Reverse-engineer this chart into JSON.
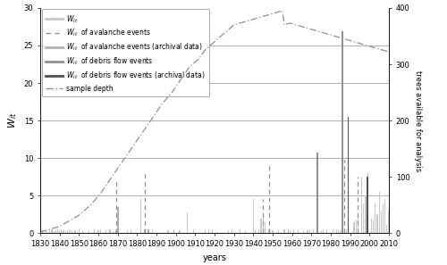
{
  "xlabel": "years",
  "ylabel_left": "$W_{it}$",
  "ylabel_right": "trees available for analysis",
  "xlim": [
    1830,
    2010
  ],
  "ylim_left": [
    0,
    30
  ],
  "ylim_right": [
    0,
    400
  ],
  "yticks_left": [
    0,
    5,
    10,
    15,
    20,
    25,
    30
  ],
  "yticks_right": [
    0,
    100,
    200,
    300,
    400
  ],
  "xticks": [
    1830,
    1840,
    1850,
    1860,
    1870,
    1880,
    1890,
    1900,
    1910,
    1920,
    1930,
    1940,
    1950,
    1960,
    1970,
    1980,
    1990,
    2000,
    2010
  ],
  "sample_depth_years": [
    1830,
    1831,
    1832,
    1833,
    1834,
    1835,
    1836,
    1837,
    1838,
    1839,
    1840,
    1841,
    1842,
    1843,
    1844,
    1845,
    1846,
    1847,
    1848,
    1849,
    1850,
    1851,
    1852,
    1853,
    1854,
    1855,
    1856,
    1857,
    1858,
    1859,
    1860,
    1861,
    1862,
    1863,
    1864,
    1865,
    1866,
    1867,
    1868,
    1869,
    1870,
    1871,
    1872,
    1873,
    1874,
    1875,
    1876,
    1877,
    1878,
    1879,
    1880,
    1881,
    1882,
    1883,
    1884,
    1885,
    1886,
    1887,
    1888,
    1889,
    1890,
    1891,
    1892,
    1893,
    1894,
    1895,
    1896,
    1897,
    1898,
    1899,
    1900,
    1901,
    1902,
    1903,
    1904,
    1905,
    1906,
    1907,
    1908,
    1909,
    1910,
    1911,
    1912,
    1913,
    1914,
    1915,
    1916,
    1917,
    1918,
    1919,
    1920,
    1921,
    1922,
    1923,
    1924,
    1925,
    1926,
    1927,
    1928,
    1929,
    1930,
    1931,
    1932,
    1933,
    1934,
    1935,
    1936,
    1937,
    1938,
    1939,
    1940,
    1941,
    1942,
    1943,
    1944,
    1945,
    1946,
    1947,
    1948,
    1949,
    1950,
    1951,
    1952,
    1953,
    1954,
    1955,
    1956,
    1957,
    1958,
    1959,
    1960,
    1961,
    1962,
    1963,
    1964,
    1965,
    1966,
    1967,
    1968,
    1969,
    1970,
    1971,
    1972,
    1973,
    1974,
    1975,
    1976,
    1977,
    1978,
    1979,
    1980,
    1981,
    1982,
    1983,
    1984,
    1985,
    1986,
    1987,
    1988,
    1989,
    1990,
    1991,
    1992,
    1993,
    1994,
    1995,
    1996,
    1997,
    1998,
    1999,
    2000,
    2001,
    2002,
    2003,
    2004,
    2005,
    2006,
    2007,
    2008,
    2009,
    2010
  ],
  "sample_depth_values": [
    2,
    3,
    4,
    5,
    6,
    7,
    8,
    9,
    10,
    11,
    12,
    14,
    16,
    18,
    20,
    22,
    24,
    26,
    28,
    30,
    32,
    35,
    38,
    41,
    44,
    47,
    50,
    54,
    58,
    62,
    66,
    70,
    75,
    80,
    85,
    90,
    95,
    100,
    105,
    110,
    115,
    120,
    125,
    130,
    135,
    140,
    145,
    150,
    155,
    160,
    165,
    170,
    175,
    180,
    185,
    190,
    195,
    200,
    205,
    210,
    215,
    220,
    225,
    230,
    234,
    238,
    242,
    246,
    250,
    255,
    260,
    265,
    270,
    275,
    280,
    285,
    290,
    295,
    298,
    301,
    304,
    307,
    310,
    315,
    320,
    325,
    328,
    331,
    334,
    337,
    340,
    343,
    346,
    349,
    352,
    355,
    358,
    361,
    364,
    367,
    370,
    371,
    372,
    373,
    374,
    375,
    376,
    377,
    378,
    379,
    380,
    381,
    382,
    383,
    384,
    385,
    386,
    387,
    388,
    389,
    390,
    391,
    392,
    393,
    394,
    395,
    370,
    371,
    372,
    373,
    372,
    371,
    370,
    369,
    368,
    367,
    366,
    365,
    364,
    363,
    362,
    361,
    360,
    359,
    358,
    357,
    356,
    355,
    354,
    353,
    352,
    351,
    350,
    349,
    348,
    347,
    346,
    345,
    344,
    343,
    342,
    341,
    340,
    339,
    338,
    337,
    336,
    335,
    334,
    333,
    332,
    331,
    330,
    329,
    328,
    327,
    326,
    325,
    324,
    323,
    322
  ],
  "wit_years": [
    1831,
    1833,
    1835,
    1836,
    1837,
    1838,
    1839,
    1840,
    1841,
    1842,
    1843,
    1844,
    1845,
    1846,
    1847,
    1848,
    1850,
    1852,
    1855,
    1858,
    1860,
    1861,
    1864,
    1866,
    1868,
    1869,
    1870,
    1875,
    1877,
    1882,
    1884,
    1888,
    1896,
    1899,
    1902,
    1906,
    1909,
    1915,
    1917,
    1919,
    1927,
    1929,
    1933,
    1936,
    1940,
    1941,
    1943,
    1944,
    1945,
    1946,
    1948,
    1950,
    1953,
    1956,
    1958,
    1959,
    1961,
    1963,
    1966,
    1968,
    1969,
    1971,
    1975,
    1976,
    1978,
    1981,
    1983,
    1984,
    1985,
    1988,
    1992,
    1993,
    1994,
    1996,
    1997,
    1998,
    1999,
    2001,
    2002,
    2003,
    2004,
    2005,
    2006,
    2007,
    2008,
    2009,
    2010
  ],
  "wit_values": [
    0.5,
    0.3,
    0.4,
    0.5,
    0.3,
    0.4,
    0.5,
    0.4,
    0.5,
    0.4,
    0.3,
    0.4,
    0.5,
    0.4,
    0.3,
    0.4,
    0.5,
    0.3,
    0.4,
    0.5,
    0.4,
    0.5,
    0.4,
    0.5,
    0.3,
    0.4,
    0.5,
    0.4,
    0.5,
    4.5,
    0.5,
    0.5,
    0.4,
    0.5,
    0.4,
    2.8,
    0.5,
    0.5,
    0.5,
    0.5,
    0.4,
    0.5,
    0.5,
    0.4,
    4.5,
    0.4,
    0.5,
    2.0,
    2.0,
    1.5,
    0.5,
    0.4,
    0.4,
    0.5,
    0.5,
    0.4,
    0.5,
    0.4,
    0.4,
    0.4,
    0.4,
    0.5,
    0.4,
    0.5,
    0.5,
    0.5,
    0.5,
    0.4,
    0.4,
    0.5,
    1.5,
    1.8,
    2.5,
    7.5,
    4.0,
    5.0,
    8.0,
    2.0,
    1.8,
    4.0,
    2.5,
    5.5,
    3.0,
    4.0,
    4.5,
    1.1,
    3.0
  ],
  "avalanche_dashed_years": [
    1869,
    1884,
    1945,
    1948,
    1987,
    1994
  ],
  "avalanche_dashed_values": [
    7.0,
    8.0,
    4.5,
    9.2,
    9.8,
    7.5
  ],
  "avalanche_archival_years": [
    1870,
    1886
  ],
  "avalanche_archival_values": [
    3.5,
    0.5
  ],
  "debris_flow_years": [
    1973,
    1986
  ],
  "debris_flow_values": [
    10.7,
    26.9
  ],
  "debris_flow_archival_years": [
    1989,
    1999
  ],
  "debris_flow_archival_values": [
    15.5,
    7.5
  ],
  "wit_bar_color": "#c8c8c8",
  "avalanche_dash_color": "#909090",
  "avalanche_archival_color": "#b0b0b0",
  "debris_flow_color": "#909090",
  "debris_flow_archival_color": "#505050",
  "sample_depth_color": "#909090",
  "hline_color": "#909090",
  "hline_lw": 0.5,
  "hline_levels": [
    5,
    10,
    15,
    20,
    25
  ]
}
